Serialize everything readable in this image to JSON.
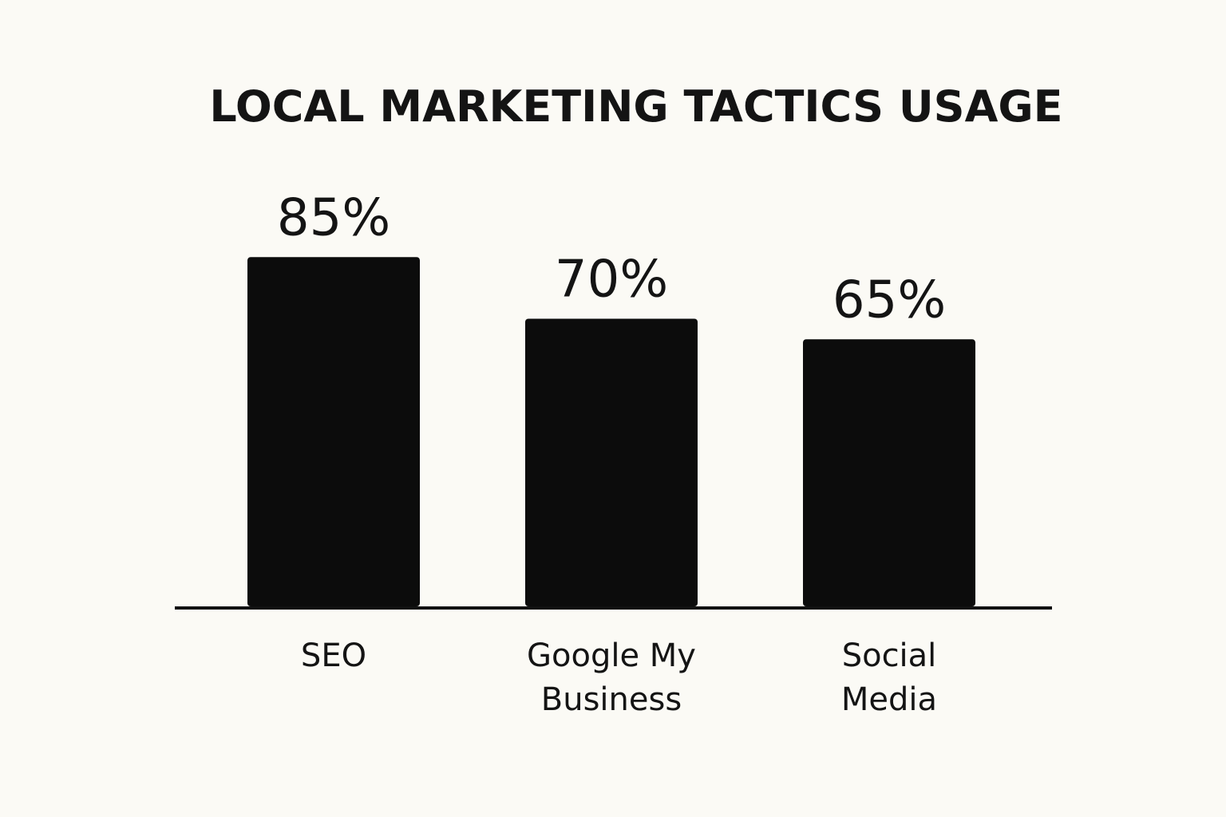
{
  "chart_data": {
    "type": "bar",
    "title": "LOCAL MARKETING TACTICS USAGE",
    "categories": [
      [
        "SEO"
      ],
      [
        "Google My",
        "Business"
      ],
      [
        "Social",
        "Media"
      ]
    ],
    "values": [
      85,
      70,
      65
    ],
    "value_labels": [
      "85%",
      "70%",
      "65%"
    ],
    "xlabel": "",
    "ylabel": "",
    "ylim": [
      0,
      100
    ],
    "grid": false,
    "legend": "none",
    "colors": {
      "bar": "#0c0c0c",
      "text": "#141414",
      "background": "#fbfaf5"
    }
  }
}
